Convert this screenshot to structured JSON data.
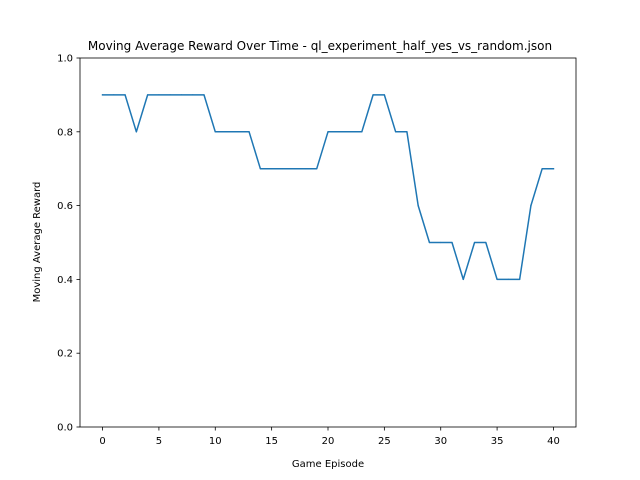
{
  "chart_data": {
    "type": "line",
    "title": "Moving Average Reward Over Time - ql_experiment_half_yes_vs_random.json",
    "xlabel": "Game Episode",
    "ylabel": "Moving Average Reward",
    "xlim": [
      -2,
      42
    ],
    "ylim": [
      0.0,
      1.0
    ],
    "xticks": [
      0,
      5,
      10,
      15,
      20,
      25,
      30,
      35,
      40
    ],
    "xtick_labels": [
      "0",
      "5",
      "10",
      "15",
      "20",
      "25",
      "30",
      "35",
      "40"
    ],
    "yticks": [
      0.0,
      0.2,
      0.4,
      0.6,
      0.8,
      1.0
    ],
    "ytick_labels": [
      "0.0",
      "0.2",
      "0.4",
      "0.6",
      "0.8",
      "1.0"
    ],
    "grid": false,
    "series": [
      {
        "color": "#1f77b4",
        "x": [
          0,
          1,
          2,
          3,
          4,
          5,
          6,
          7,
          8,
          9,
          10,
          11,
          12,
          13,
          14,
          15,
          16,
          17,
          18,
          19,
          20,
          21,
          22,
          23,
          24,
          25,
          26,
          27,
          28,
          29,
          30,
          31,
          32,
          33,
          34,
          35,
          36,
          37,
          38,
          39,
          40
        ],
        "values": [
          0.9,
          0.9,
          0.9,
          0.8,
          0.9,
          0.9,
          0.9,
          0.9,
          0.9,
          0.9,
          0.8,
          0.8,
          0.8,
          0.8,
          0.7,
          0.7,
          0.7,
          0.7,
          0.7,
          0.7,
          0.8,
          0.8,
          0.8,
          0.8,
          0.9,
          0.9,
          0.8,
          0.8,
          0.6,
          0.5,
          0.5,
          0.5,
          0.4,
          0.5,
          0.5,
          0.4,
          0.4,
          0.4,
          0.6,
          0.7,
          0.7
        ]
      }
    ]
  }
}
